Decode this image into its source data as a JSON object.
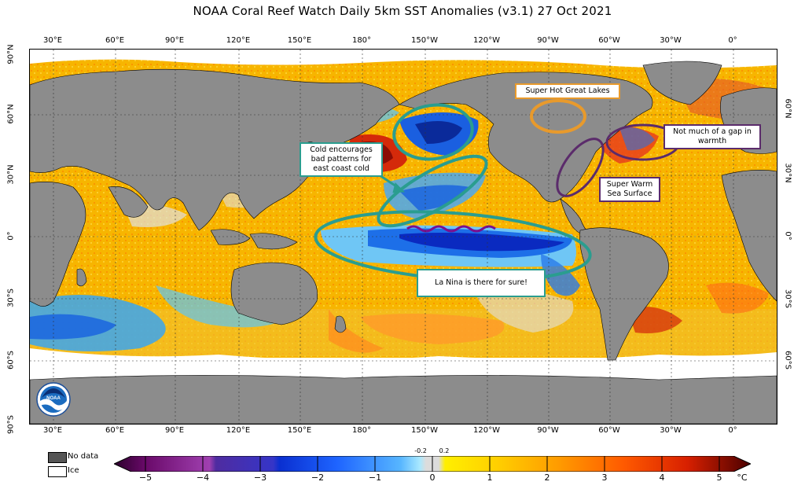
{
  "title": "NOAA Coral Reef Watch Daily 5km SST Anomalies  (v3.1)   27 Oct 2021",
  "lon_labels": [
    "30°E",
    "60°E",
    "90°E",
    "120°E",
    "150°E",
    "180°",
    "150°W",
    "120°W",
    "90°W",
    "60°W",
    "30°W",
    "0°"
  ],
  "lat_labels_left": [
    "90°N",
    "60°N",
    "30°N",
    "0°",
    "30°S",
    "60°S",
    "90°S"
  ],
  "lat_labels_right": [
    "60°N",
    "30°N",
    "0°",
    "30°S",
    "60°S"
  ],
  "annotations": {
    "great_lakes": "Super Hot Great Lakes",
    "gap": "Not much of a gap in warmth",
    "cold": "Cold encourages bad patterns for east coast cold",
    "sea_surface": "Super Warm Sea Surface",
    "la_nina": "La Nina is there for sure!"
  },
  "legend": {
    "no_data": "No data",
    "ice": "Ice",
    "no_data_color": "#555555",
    "ice_color": "#ffffff"
  },
  "colorbar": {
    "ticks": [
      "−5",
      "−4",
      "−3",
      "−2",
      "−1",
      "0",
      "1",
      "2",
      "3",
      "4",
      "5"
    ],
    "small_ticks": [
      "-0.2",
      "0.2"
    ],
    "unit": "°C"
  },
  "colors": {
    "land": "#8c8c8c",
    "ocean_warm": "#f5b800",
    "annotation_teal": "#2a9d8f",
    "annotation_orange": "#e89a2c",
    "annotation_purple": "#5b2b6b"
  }
}
